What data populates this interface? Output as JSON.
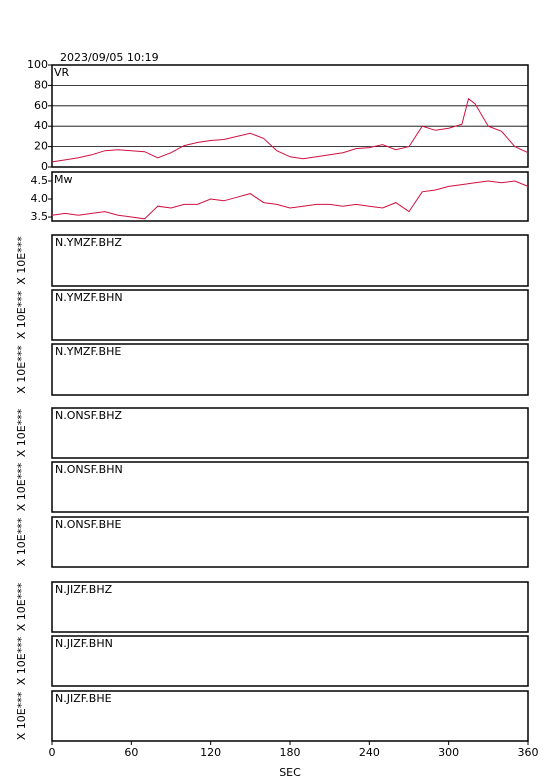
{
  "chart_data": [
    {
      "type": "line",
      "title": "2023/09/05  10:19",
      "ylabel": "VR",
      "ylim": [
        0,
        100
      ],
      "yticks": [
        0,
        20,
        40,
        60,
        80,
        100
      ],
      "grid": true,
      "xlim": [
        0,
        360
      ],
      "x": [
        0,
        10,
        20,
        30,
        40,
        50,
        60,
        70,
        80,
        90,
        100,
        110,
        120,
        130,
        140,
        150,
        160,
        170,
        180,
        190,
        200,
        210,
        220,
        230,
        240,
        250,
        260,
        270,
        280,
        290,
        300,
        310,
        315,
        320,
        330,
        340,
        350,
        360
      ],
      "series": [
        {
          "color": "#d01040",
          "values": [
            5,
            7,
            9,
            12,
            16,
            17,
            16,
            15,
            9,
            14,
            21,
            24,
            26,
            27,
            30,
            33,
            28,
            16,
            10,
            8,
            10,
            12,
            14,
            18,
            19,
            22,
            17,
            20,
            40,
            36,
            38,
            42,
            67,
            62,
            40,
            35,
            20,
            14
          ]
        }
      ]
    },
    {
      "type": "line",
      "ylabel": "Mw",
      "ylim": [
        3.39,
        4.75
      ],
      "yticks": [
        {
          "value": 3.5,
          "label": "3.5"
        },
        {
          "value": 4,
          "label": "4.0"
        },
        {
          "value": 4.5,
          "label": "4.5"
        }
      ],
      "grid": false,
      "xlim": [
        0,
        360
      ],
      "x": [
        0,
        10,
        20,
        30,
        40,
        50,
        60,
        70,
        80,
        90,
        100,
        110,
        120,
        130,
        140,
        150,
        160,
        170,
        180,
        190,
        200,
        210,
        220,
        230,
        240,
        250,
        260,
        270,
        280,
        290,
        300,
        310,
        320,
        330,
        340,
        350,
        360
      ],
      "series": [
        {
          "color": "#d01040",
          "values": [
            3.55,
            3.6,
            3.55,
            3.6,
            3.65,
            3.55,
            3.5,
            3.45,
            3.8,
            3.75,
            3.85,
            3.85,
            4.0,
            3.95,
            4.05,
            4.15,
            3.9,
            3.85,
            3.75,
            3.8,
            3.85,
            3.85,
            3.8,
            3.85,
            3.8,
            3.75,
            3.9,
            3.65,
            4.2,
            4.25,
            4.35,
            4.4,
            4.45,
            4.5,
            4.45,
            4.5,
            4.35
          ]
        }
      ]
    },
    {
      "type": "empty",
      "title": "N.YMZF.BHZ",
      "ylabel": "X 10E***"
    },
    {
      "type": "empty",
      "title": "N.YMZF.BHN",
      "ylabel": "X 10E***"
    },
    {
      "type": "empty",
      "title": "N.YMZF.BHE",
      "ylabel": "X 10E***"
    },
    {
      "type": "empty",
      "title": "N.ONSF.BHZ",
      "ylabel": "X 10E***"
    },
    {
      "type": "empty",
      "title": "N.ONSF.BHN",
      "ylabel": "X 10E***"
    },
    {
      "type": "empty",
      "title": "N.ONSF.BHE",
      "ylabel": "X 10E***"
    },
    {
      "type": "empty",
      "title": "N.JIZF.BHZ",
      "ylabel": "X 10E***"
    },
    {
      "type": "empty",
      "title": "N.JIZF.BHN",
      "ylabel": "X 10E***"
    },
    {
      "type": "empty",
      "title": "N.JIZF.BHE",
      "ylabel": "X 10E***",
      "xlim": [
        0,
        360
      ],
      "xticks": [
        0,
        60,
        120,
        180,
        240,
        300,
        360
      ],
      "xlabel": "SEC"
    }
  ]
}
